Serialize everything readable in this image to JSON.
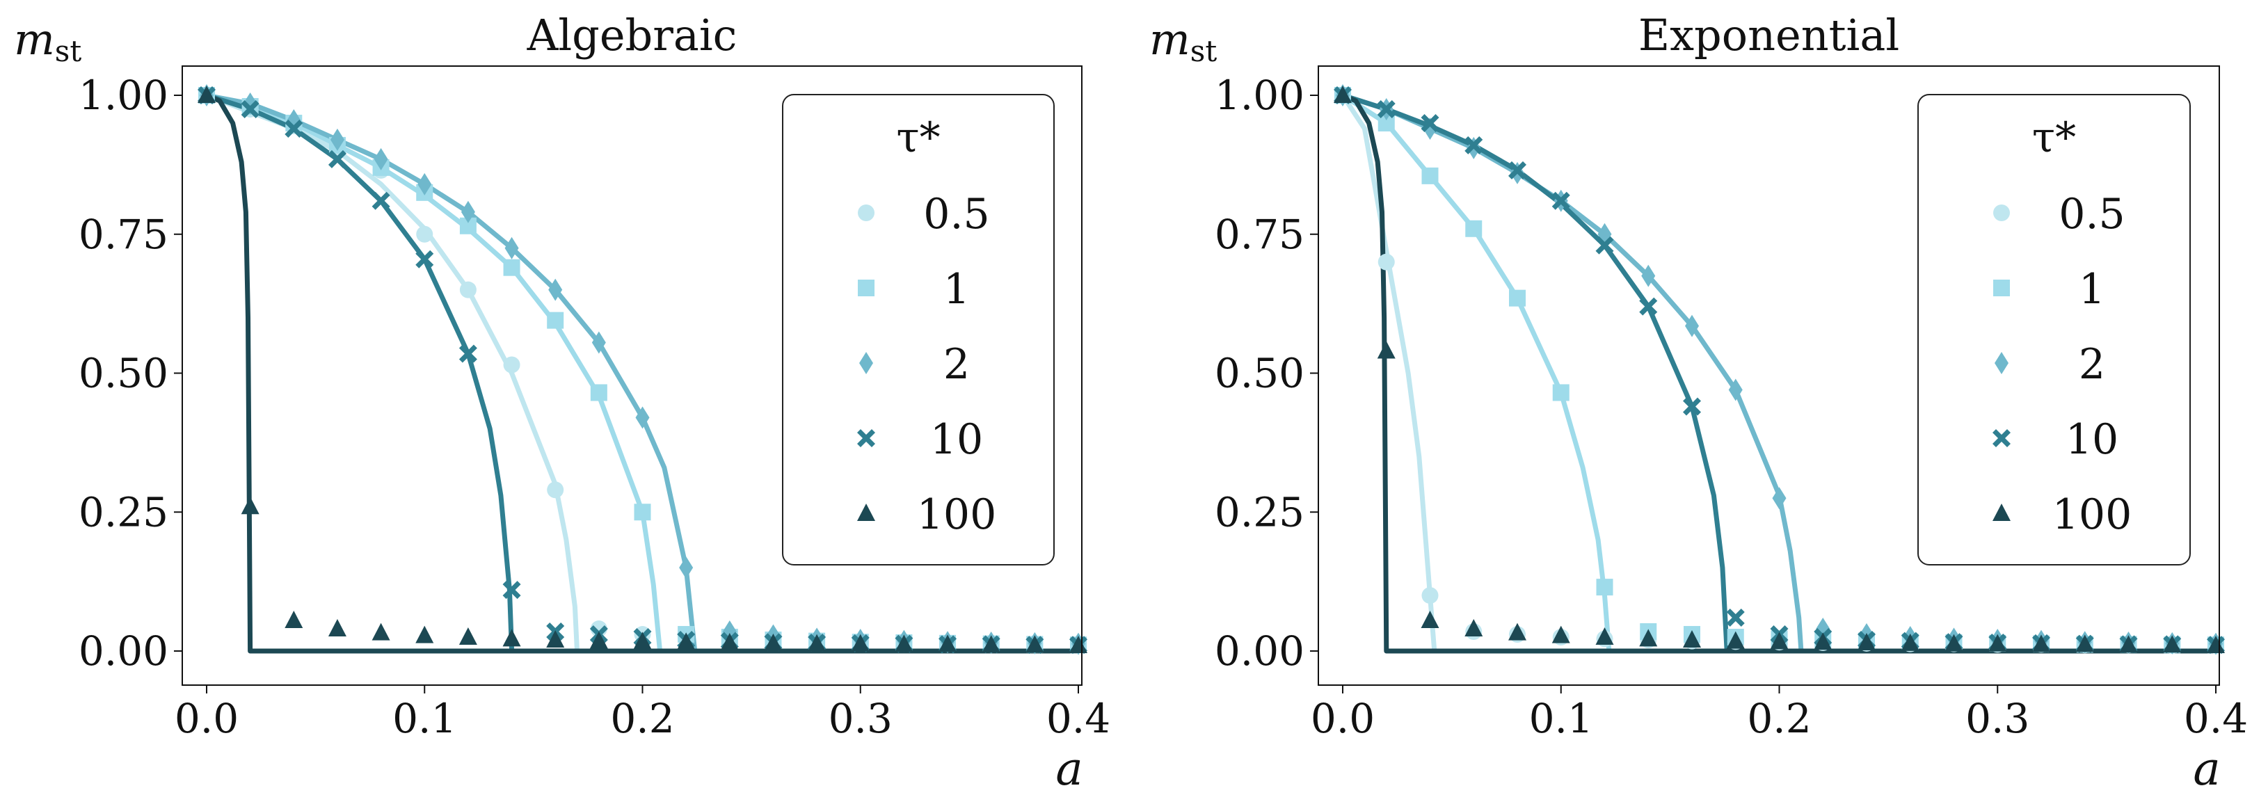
{
  "chart_data": [
    {
      "type": "line",
      "title": "Algebraic",
      "ylabel": "m",
      "ylabel_sub": "st",
      "xlabel": "a",
      "xlim": [
        0,
        0.4
      ],
      "ylim": [
        0,
        1
      ],
      "xticks": [
        "0.0",
        "0.1",
        "0.2",
        "0.3",
        "0.4"
      ],
      "yticks": [
        "0.00",
        "0.25",
        "0.50",
        "0.75",
        "1.00"
      ],
      "legend": {
        "title": "τ*",
        "placement": "top-right",
        "entries": [
          "0.5",
          "1",
          "2",
          "10",
          "100"
        ]
      },
      "series": [
        {
          "name": "0.5",
          "marker": "circle",
          "color": "#bfe6ef",
          "ac": 0.17,
          "curve_x": [
            0,
            0.02,
            0.04,
            0.06,
            0.08,
            0.1,
            0.12,
            0.14,
            0.16,
            0.165,
            0.169,
            0.17,
            0.4
          ],
          "curve_y": [
            1.0,
            0.97,
            0.94,
            0.9,
            0.84,
            0.76,
            0.65,
            0.5,
            0.3,
            0.2,
            0.08,
            0,
            0
          ],
          "points_x": [
            0,
            0.02,
            0.04,
            0.06,
            0.08,
            0.1,
            0.12,
            0.14,
            0.16,
            0.18,
            0.2,
            0.22,
            0.24,
            0.26,
            0.28,
            0.3,
            0.32,
            0.34,
            0.36,
            0.38,
            0.4
          ],
          "points_y": [
            1.0,
            0.975,
            0.945,
            0.905,
            0.865,
            0.75,
            0.65,
            0.515,
            0.29,
            0.04,
            0.03,
            0.025,
            0.02,
            0.018,
            0.016,
            0.015,
            0.014,
            0.013,
            0.012,
            0.012,
            0.011
          ]
        },
        {
          "name": "1",
          "marker": "square",
          "color": "#9edbea",
          "ac": 0.208,
          "curve_x": [
            0,
            0.02,
            0.04,
            0.06,
            0.08,
            0.1,
            0.12,
            0.14,
            0.16,
            0.18,
            0.2,
            0.205,
            0.208,
            0.4
          ],
          "curve_y": [
            1.0,
            0.98,
            0.95,
            0.91,
            0.87,
            0.82,
            0.76,
            0.69,
            0.59,
            0.46,
            0.25,
            0.12,
            0,
            0
          ],
          "points_x": [
            0,
            0.02,
            0.04,
            0.06,
            0.08,
            0.1,
            0.12,
            0.14,
            0.16,
            0.18,
            0.2,
            0.22,
            0.24,
            0.26,
            0.28,
            0.3,
            0.32,
            0.34,
            0.36,
            0.38,
            0.4
          ],
          "points_y": [
            1.0,
            0.98,
            0.95,
            0.91,
            0.87,
            0.825,
            0.765,
            0.69,
            0.595,
            0.465,
            0.25,
            0.03,
            0.025,
            0.02,
            0.018,
            0.016,
            0.015,
            0.014,
            0.013,
            0.012,
            0.011
          ]
        },
        {
          "name": "2",
          "marker": "diamond",
          "color": "#6fb8cc",
          "ac": 0.224,
          "curve_x": [
            0,
            0.02,
            0.04,
            0.06,
            0.08,
            0.1,
            0.12,
            0.14,
            0.16,
            0.18,
            0.2,
            0.21,
            0.22,
            0.224,
            0.4
          ],
          "curve_y": [
            1.0,
            0.985,
            0.955,
            0.92,
            0.885,
            0.84,
            0.79,
            0.725,
            0.65,
            0.555,
            0.42,
            0.33,
            0.15,
            0,
            0
          ],
          "points_x": [
            0,
            0.02,
            0.04,
            0.06,
            0.08,
            0.1,
            0.12,
            0.14,
            0.16,
            0.18,
            0.2,
            0.22,
            0.24,
            0.26,
            0.28,
            0.3,
            0.32,
            0.34,
            0.36,
            0.38,
            0.4
          ],
          "points_y": [
            1.0,
            0.985,
            0.955,
            0.92,
            0.885,
            0.84,
            0.79,
            0.725,
            0.65,
            0.555,
            0.42,
            0.15,
            0.035,
            0.028,
            0.022,
            0.02,
            0.018,
            0.016,
            0.015,
            0.014,
            0.013
          ]
        },
        {
          "name": "10",
          "marker": "x",
          "color": "#2f7f91",
          "ac": 0.14,
          "curve_x": [
            0,
            0.02,
            0.04,
            0.06,
            0.08,
            0.1,
            0.12,
            0.13,
            0.135,
            0.139,
            0.14,
            0.4
          ],
          "curve_y": [
            1.0,
            0.975,
            0.94,
            0.885,
            0.81,
            0.705,
            0.535,
            0.4,
            0.28,
            0.11,
            0,
            0
          ],
          "points_x": [
            0,
            0.02,
            0.04,
            0.06,
            0.08,
            0.1,
            0.12,
            0.14,
            0.16,
            0.18,
            0.2,
            0.22,
            0.24,
            0.26,
            0.28,
            0.3,
            0.32,
            0.34,
            0.36,
            0.38,
            0.4
          ],
          "points_y": [
            1.0,
            0.975,
            0.94,
            0.885,
            0.81,
            0.705,
            0.535,
            0.11,
            0.035,
            0.03,
            0.025,
            0.02,
            0.018,
            0.016,
            0.015,
            0.014,
            0.013,
            0.012,
            0.012,
            0.011,
            0.011
          ]
        },
        {
          "name": "100",
          "marker": "triangle",
          "color": "#1c4853",
          "ac": 0.02,
          "curve_x": [
            0,
            0.006,
            0.012,
            0.016,
            0.018,
            0.019,
            0.0195,
            0.02,
            0.4
          ],
          "curve_y": [
            1.0,
            0.99,
            0.95,
            0.88,
            0.79,
            0.6,
            0.3,
            0,
            0
          ],
          "points_x": [
            0,
            0.02,
            0.04,
            0.06,
            0.08,
            0.1,
            0.12,
            0.14,
            0.16,
            0.18,
            0.2,
            0.22,
            0.24,
            0.26,
            0.28,
            0.3,
            0.32,
            0.34,
            0.36,
            0.38,
            0.4
          ],
          "points_y": [
            1.0,
            0.26,
            0.055,
            0.04,
            0.033,
            0.028,
            0.025,
            0.022,
            0.02,
            0.018,
            0.017,
            0.016,
            0.015,
            0.014,
            0.013,
            0.013,
            0.012,
            0.012,
            0.011,
            0.011,
            0.01
          ]
        }
      ]
    },
    {
      "type": "line",
      "title": "Exponential",
      "ylabel": "m",
      "ylabel_sub": "st",
      "xlabel": "a",
      "xlim": [
        0,
        0.4
      ],
      "ylim": [
        0,
        1
      ],
      "xticks": [
        "0.0",
        "0.1",
        "0.2",
        "0.3",
        "0.4"
      ],
      "yticks": [
        "0.00",
        "0.25",
        "0.50",
        "0.75",
        "1.00"
      ],
      "legend": {
        "title": "τ*",
        "placement": "top-right",
        "entries": [
          "0.5",
          "1",
          "2",
          "10",
          "100"
        ]
      },
      "series": [
        {
          "name": "0.5",
          "marker": "circle",
          "color": "#bfe6ef",
          "ac": 0.042,
          "curve_x": [
            0,
            0.01,
            0.02,
            0.03,
            0.035,
            0.039,
            0.041,
            0.042,
            0.4
          ],
          "curve_y": [
            1.0,
            0.94,
            0.72,
            0.5,
            0.35,
            0.15,
            0.05,
            0,
            0
          ],
          "points_x": [
            0,
            0.02,
            0.04,
            0.06,
            0.08,
            0.1,
            0.12,
            0.14,
            0.16,
            0.18,
            0.2,
            0.22,
            0.24,
            0.26,
            0.28,
            0.3,
            0.32,
            0.34,
            0.36,
            0.38,
            0.4
          ],
          "points_y": [
            1.0,
            0.7,
            0.1,
            0.035,
            0.03,
            0.025,
            0.022,
            0.02,
            0.018,
            0.017,
            0.016,
            0.015,
            0.014,
            0.013,
            0.013,
            0.012,
            0.012,
            0.011,
            0.011,
            0.01,
            0.01
          ]
        },
        {
          "name": "1",
          "marker": "square",
          "color": "#9edbea",
          "ac": 0.122,
          "curve_x": [
            0,
            0.02,
            0.04,
            0.06,
            0.08,
            0.1,
            0.11,
            0.117,
            0.12,
            0.122,
            0.4
          ],
          "curve_y": [
            1.0,
            0.95,
            0.855,
            0.76,
            0.635,
            0.465,
            0.33,
            0.2,
            0.1,
            0,
            0
          ],
          "points_x": [
            0,
            0.02,
            0.04,
            0.06,
            0.08,
            0.1,
            0.12,
            0.14,
            0.16,
            0.18,
            0.2,
            0.22,
            0.24,
            0.26,
            0.28,
            0.3,
            0.32,
            0.34,
            0.36,
            0.38,
            0.4
          ],
          "points_y": [
            1.0,
            0.95,
            0.855,
            0.76,
            0.635,
            0.465,
            0.115,
            0.035,
            0.03,
            0.025,
            0.022,
            0.02,
            0.018,
            0.016,
            0.015,
            0.014,
            0.013,
            0.012,
            0.012,
            0.011,
            0.011
          ]
        },
        {
          "name": "2",
          "marker": "diamond",
          "color": "#6fb8cc",
          "ac": 0.21,
          "curve_x": [
            0,
            0.02,
            0.04,
            0.06,
            0.08,
            0.1,
            0.12,
            0.14,
            0.16,
            0.18,
            0.2,
            0.205,
            0.209,
            0.21,
            0.4
          ],
          "curve_y": [
            1.0,
            0.975,
            0.94,
            0.905,
            0.86,
            0.81,
            0.75,
            0.675,
            0.585,
            0.47,
            0.28,
            0.18,
            0.06,
            0,
            0
          ],
          "points_x": [
            0,
            0.02,
            0.04,
            0.06,
            0.08,
            0.1,
            0.12,
            0.14,
            0.16,
            0.18,
            0.2,
            0.22,
            0.24,
            0.26,
            0.28,
            0.3,
            0.32,
            0.34,
            0.36,
            0.38,
            0.4
          ],
          "points_y": [
            1.0,
            0.975,
            0.94,
            0.905,
            0.86,
            0.81,
            0.75,
            0.675,
            0.585,
            0.47,
            0.275,
            0.04,
            0.03,
            0.025,
            0.022,
            0.02,
            0.018,
            0.016,
            0.015,
            0.014,
            0.013
          ]
        },
        {
          "name": "10",
          "marker": "x",
          "color": "#2f7f91",
          "ac": 0.176,
          "curve_x": [
            0,
            0.02,
            0.04,
            0.06,
            0.08,
            0.1,
            0.12,
            0.14,
            0.16,
            0.17,
            0.174,
            0.176,
            0.4
          ],
          "curve_y": [
            1.0,
            0.975,
            0.945,
            0.91,
            0.865,
            0.805,
            0.73,
            0.62,
            0.44,
            0.28,
            0.15,
            0,
            0
          ],
          "points_x": [
            0,
            0.02,
            0.04,
            0.06,
            0.08,
            0.1,
            0.12,
            0.14,
            0.16,
            0.18,
            0.2,
            0.22,
            0.24,
            0.26,
            0.28,
            0.3,
            0.32,
            0.34,
            0.36,
            0.38,
            0.4
          ],
          "points_y": [
            1.0,
            0.975,
            0.95,
            0.91,
            0.865,
            0.81,
            0.73,
            0.62,
            0.44,
            0.06,
            0.03,
            0.025,
            0.02,
            0.018,
            0.016,
            0.015,
            0.014,
            0.013,
            0.012,
            0.012,
            0.011
          ]
        },
        {
          "name": "100",
          "marker": "triangle",
          "color": "#1c4853",
          "ac": 0.02,
          "curve_x": [
            0,
            0.006,
            0.012,
            0.016,
            0.018,
            0.019,
            0.0195,
            0.02,
            0.4
          ],
          "curve_y": [
            1.0,
            0.99,
            0.95,
            0.88,
            0.79,
            0.6,
            0.3,
            0,
            0
          ],
          "points_x": [
            0,
            0.02,
            0.04,
            0.06,
            0.08,
            0.1,
            0.12,
            0.14,
            0.16,
            0.18,
            0.2,
            0.22,
            0.24,
            0.26,
            0.28,
            0.3,
            0.32,
            0.34,
            0.36,
            0.38,
            0.4
          ],
          "points_y": [
            1.0,
            0.54,
            0.055,
            0.04,
            0.033,
            0.028,
            0.025,
            0.022,
            0.02,
            0.018,
            0.017,
            0.016,
            0.015,
            0.014,
            0.013,
            0.013,
            0.012,
            0.012,
            0.011,
            0.011,
            0.01
          ]
        }
      ]
    }
  ]
}
